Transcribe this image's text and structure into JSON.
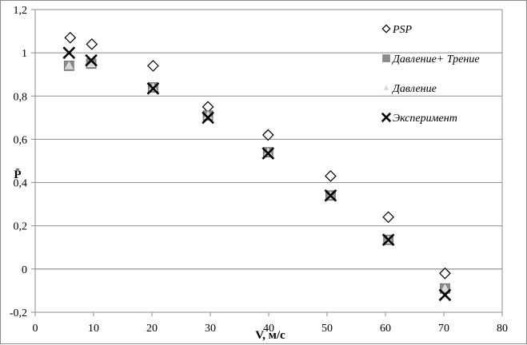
{
  "chart_data": {
    "type": "scatter",
    "xlabel": "V, м/с",
    "ylabel": "P̄",
    "xlim": [
      0,
      80
    ],
    "ylim": [
      -0.2,
      1.2
    ],
    "xticks": [
      0,
      10,
      20,
      30,
      40,
      50,
      60,
      70,
      80
    ],
    "yticks": [
      -0.2,
      0,
      0.2,
      0.4,
      0.6,
      0.8,
      1,
      1.2
    ],
    "xtick_labels": [
      "0",
      "10",
      "20",
      "30",
      "40",
      "50",
      "60",
      "70",
      "80"
    ],
    "ytick_labels": [
      "-0,2",
      "0",
      "0,2",
      "0,4",
      "0,6",
      "0,8",
      "1",
      "1,2"
    ],
    "grid": "horizontal",
    "legend": "right",
    "series": [
      {
        "name": "PSP",
        "marker": "diamond-open",
        "color": "#000000",
        "x": [
          6,
          9.7,
          20.2,
          29.6,
          39.9,
          50.6,
          60.5,
          70.2
        ],
        "y": [
          1.07,
          1.04,
          0.94,
          0.75,
          0.62,
          0.43,
          0.24,
          -0.02
        ]
      },
      {
        "name": "Давление+ Трение",
        "marker": "square",
        "color": "#8c8c8c",
        "x": [
          5.8,
          9.6,
          20.2,
          29.6,
          39.9,
          50.6,
          60.5,
          70.2
        ],
        "y": [
          0.94,
          0.95,
          0.84,
          0.71,
          0.54,
          0.34,
          0.135,
          -0.09
        ]
      },
      {
        "name": "Давление",
        "marker": "triangle",
        "color": "#d9d9d9",
        "x": [
          5.8,
          9.6,
          20.2,
          29.6,
          39.9,
          50.6,
          60.5,
          70.2
        ],
        "y": [
          0.94,
          0.95,
          0.84,
          0.71,
          0.54,
          0.34,
          0.135,
          -0.09
        ]
      },
      {
        "name": "Эксперимент",
        "marker": "x",
        "color": "#000000",
        "x": [
          5.8,
          9.6,
          20.2,
          29.6,
          39.9,
          50.6,
          60.5,
          70.2
        ],
        "y": [
          1.0,
          0.965,
          0.835,
          0.7,
          0.535,
          0.34,
          0.135,
          -0.12
        ]
      }
    ]
  }
}
